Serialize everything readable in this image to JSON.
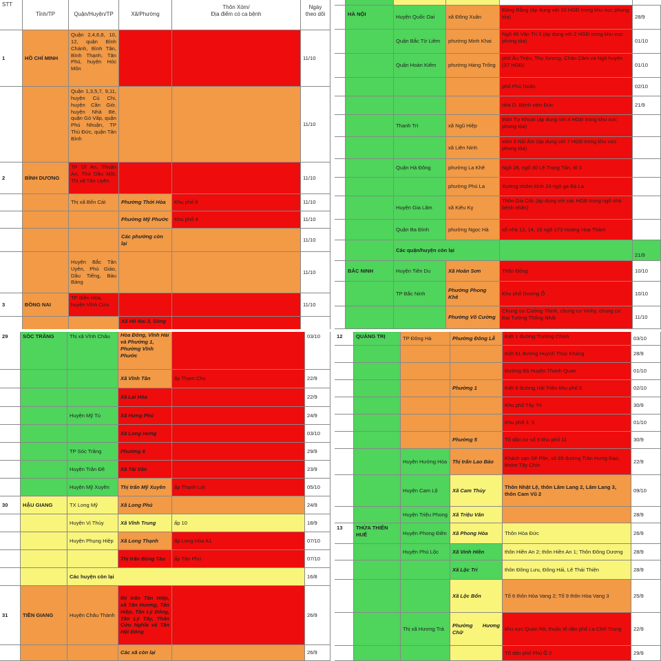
{
  "colors": {
    "green": "#4fd45c",
    "orange": "#f29a46",
    "red": "#ef0c0c",
    "yellow": "#f8f57a"
  },
  "q1": {
    "header": {
      "stt": "STT",
      "tinh": "Tỉnh/TP",
      "quan": "Quận/Huyện/TP",
      "xa": "Xã/Phường",
      "thon": "Thôn Xóm/\nĐịa điểm có ca bệnh",
      "ngay": "Ngày theo dõi"
    },
    "rows": [
      {
        "stt": "1",
        "tinh": "HỒ CHÍ MINH",
        "quan": "Quận 2,4,6,8, 10, 12, quận Bình Chánh, Bình Tân, Bình Thạnh, Tân Phú, huyện Hóc Môn",
        "xa": "",
        "thon": "",
        "ngay": "11/10"
      },
      {
        "stt": "",
        "tinh": "",
        "quan": "Quận 1,3,5,7, 9,11, huyện Củ Chi, huyện Cần Giờ, huyện Nhà Bè, quận Gò Vấp, quận Phú Nhuận, TP Thủ Đức, quận Tân Bình",
        "xa": "",
        "thon": "",
        "ngay": "11/10"
      },
      {
        "stt": "2",
        "tinh": "BÌNH DƯƠNG",
        "quan": "TP Dĩ An, Thuận An, Thủ Dầu Một, Thị xã Tân Uyên",
        "xa": "",
        "thon": "",
        "ngay": "11/10"
      },
      {
        "stt": "",
        "tinh": "",
        "quan": "Thị xã Bến Cát",
        "xa": "Phường Thới Hòa",
        "thon": "Khu phố 6",
        "ngay": "11/10"
      },
      {
        "stt": "",
        "tinh": "",
        "quan": "",
        "xa": "Phường Mỹ Phước",
        "thon": "Khu phố 4",
        "ngay": "11/10"
      },
      {
        "stt": "",
        "tinh": "",
        "quan": "",
        "xa": "Các phường còn lại",
        "thon": "",
        "ngay": "11/10"
      },
      {
        "stt": "",
        "tinh": "",
        "quan": "Huyện Bắc Tân Uyên, Phú Giáo, Dầu Tiếng, Bàu Bàng",
        "xa": "",
        "thon": "",
        "ngay": "11/10"
      },
      {
        "stt": "3",
        "tinh": "ĐỒNG NAI",
        "quan": "TP Biên Hòa, huyện Vĩnh Cửu",
        "xa": "",
        "thon": "",
        "ngay": "11/10"
      },
      {
        "stt": "",
        "tinh": "",
        "quan": "",
        "xa": "Xã Hố Nai 3, Sông",
        "thon": "",
        "ngay": ""
      }
    ]
  },
  "q2": {
    "rows": [
      {
        "tinh": "HÀ NỘI",
        "quan": "Huyện Quốc Oai",
        "xa": "xã Đông Xuân",
        "thon": "Đồng Rằng (áp dụng với 10 HGĐ trong khu vực phong tỏa)",
        "ngay": "28/9"
      },
      {
        "tinh": "",
        "quan": "Quận Bắc Từ Liêm",
        "xa": "phường Minh Khai",
        "thon": "Ngõ 46 Văn Trì 3 (áp dụng với 2 HGĐ trong khu vực phong tỏa)",
        "ngay": "01/10"
      },
      {
        "tinh": "",
        "quan": "Quận Hoàn Kiếm",
        "xa": "phường Hàng Trống",
        "thon": "phố Âu Triệu, Thọ Xương, Chân Cầm và Ngõ huyện (37 HGĐ)",
        "ngay": "01/10"
      },
      {
        "tinh": "",
        "quan": "",
        "xa": "",
        "thon": "phố Phủ Doãn",
        "ngay": "02/10"
      },
      {
        "tinh": "",
        "quan": "",
        "xa": "",
        "thon": "nhà D. Bệnh viện Đức",
        "ngay": "21/9"
      },
      {
        "tinh": "",
        "quan": "Thanh Trì",
        "xa": "xã Ngũ Hiệp",
        "thon": "thôn Tự Khoát (áp dụng với 4 HGĐ trong khu vực phong tỏa)",
        "ngay": ""
      },
      {
        "tinh": "",
        "quan": "",
        "xa": "xã Liên Ninh",
        "thon": "xóm 3 Nội Âm (áp dụng với 7 HGĐ trong khu vực phong tỏa)",
        "ngay": ""
      },
      {
        "tinh": "",
        "quan": "Quận Hà Đông",
        "xa": "phường La Khê",
        "thon": "Ngõ 28, ngõ 30 Lê Trọng Tấn, tổ 3",
        "ngay": ""
      },
      {
        "tinh": "",
        "quan": "",
        "xa": "phường Phú La",
        "thon": "Xưởng nhôm kính 24 ngõ ga Bà La",
        "ngay": ""
      },
      {
        "tinh": "",
        "quan": "Huyện Gia Lâm",
        "xa": "xã Kiêu Kỵ",
        "thon": "Thôn Gia Cốc (áp dụng với các HGĐ trong ngõ nhà bệnh nhân)",
        "ngay": ""
      },
      {
        "tinh": "",
        "quan": "Quận Ba Đình",
        "xa": "phường Ngọc Hà",
        "thon": "số nhà 12, 14, 16 ngõ 173 Hoàng Hoa Thám",
        "ngay": ""
      },
      {
        "tinh": "",
        "quan": "Các quận/huyện còn lại",
        "xa": "",
        "thon": "",
        "ngay": "21/9"
      },
      {
        "tinh": "BẮC NINH",
        "quan": "Huyện Tiên Du",
        "xa": "Xã Hoàn Sơn",
        "thon": "Thôn Đồng",
        "ngay": "10/10"
      },
      {
        "tinh": "",
        "quan": "TP Bắc Ninh",
        "xa": "Phường Phong Khê",
        "thon": "Khu phố Dương Ổ",
        "ngay": "10/10"
      },
      {
        "tinh": "",
        "quan": "",
        "xa": "Phường Võ Cường",
        "thon": "Chung cư Cường Thịnh, chung cư Vinhy, chung cư Đại Tướng Thống Nhất",
        "ngay": "11/10"
      }
    ]
  },
  "q3": {
    "rows": [
      {
        "stt": "29",
        "tinh": "SÓC TRĂNG",
        "quan": "Thị xã Vĩnh Châu",
        "xa": "Hòa Đông, Vĩnh Hải và Phường 1, Phường Vĩnh Phước",
        "thon": "",
        "ngay": "03/10"
      },
      {
        "stt": "",
        "tinh": "",
        "quan": "",
        "xa": "Xã Vĩnh Tân",
        "thon": "ấp Tham Chu",
        "ngay": "22/9"
      },
      {
        "stt": "",
        "tinh": "",
        "quan": "",
        "xa": "Xã Lai Hòa",
        "thon": "",
        "ngay": "22/9"
      },
      {
        "stt": "",
        "tinh": "",
        "quan": "Huyện Mỹ Tú",
        "xa": "Xã Hưng Phú",
        "thon": "",
        "ngay": "24/9"
      },
      {
        "stt": "",
        "tinh": "",
        "quan": "",
        "xa": "Xã Long Hưng",
        "thon": "",
        "ngay": "03/10"
      },
      {
        "stt": "",
        "tinh": "",
        "quan": "TP Sóc Trăng",
        "xa": "Phường 6",
        "thon": "",
        "ngay": "29/9"
      },
      {
        "stt": "",
        "tinh": "",
        "quan": "Huyện Trần Đề",
        "xa": "Xã Tài Văn",
        "thon": "",
        "ngay": "23/9"
      },
      {
        "stt": "",
        "tinh": "",
        "quan": "Huyện Mỹ Xuyên",
        "xa": "Thị trấn Mỹ Xuyên",
        "thon": "ấp Thạnh Lợi",
        "ngay": "05/10"
      },
      {
        "stt": "30",
        "tinh": "HẬU GIANG",
        "quan": "TX Long Mỹ",
        "xa": "Xã Long Phú",
        "thon": "",
        "ngay": "24/9"
      },
      {
        "stt": "",
        "tinh": "",
        "quan": "Huyện Vị Thủy",
        "xa": "Xã Vĩnh Trung",
        "thon": "ấp 10",
        "ngay": "18/9"
      },
      {
        "stt": "",
        "tinh": "",
        "quan": "Huyện Phụng Hiệp",
        "xa": "Xã Long Thạnh",
        "thon": "ấp Long Hòa A1",
        "ngay": "07/10"
      },
      {
        "stt": "",
        "tinh": "",
        "quan": "",
        "xa": "Thị trấn Búng Tàu",
        "thon": "ấp Tân Phú",
        "ngay": "07/10"
      },
      {
        "stt": "",
        "tinh": "",
        "quan": "Các huyện còn lại",
        "xa": "",
        "thon": "",
        "ngay": "16/8"
      },
      {
        "stt": "31",
        "tinh": "TIỀN GIANG",
        "quan": "Huyện Châu Thành",
        "xa": "thị trấn Tân Hiệp, xã Tân Hương, Tân Hiệp, Tân Lý Đông, Tân Lý Tây, Thân Cửu Nghĩa và Tân Hội Đông",
        "thon": "",
        "ngay": "26/9"
      },
      {
        "stt": "",
        "tinh": "",
        "quan": "",
        "xa": "Các xã còn lại",
        "thon": "",
        "ngay": "26/9"
      }
    ]
  },
  "q4": {
    "rows": [
      {
        "stt": "12",
        "tinh": "QUẢNG TRỊ",
        "quan": "TP Đông Hà",
        "xa": "Phường Đông Lễ",
        "thon": "Kiệt 1 đường Trường Chinh",
        "ngay": "03/10"
      },
      {
        "stt": "",
        "tinh": "",
        "quan": "",
        "xa": "",
        "thon": "Kiệt 61 đường Huỳnh Thúc Kháng",
        "ngay": "28/9"
      },
      {
        "stt": "",
        "tinh": "",
        "quan": "",
        "xa": "",
        "thon": "Đường Bà Huyện Thanh Quan",
        "ngay": "01/10"
      },
      {
        "stt": "",
        "tinh": "",
        "quan": "",
        "xa": "Phường 1",
        "thon": "Kiệt 8 đường Hải Triều khu phố 5",
        "ngay": "02/10"
      },
      {
        "stt": "",
        "tinh": "",
        "quan": "",
        "xa": "",
        "thon": "Khu phố Tây Trì",
        "ngay": "30/9"
      },
      {
        "stt": "",
        "tinh": "",
        "quan": "",
        "xa": "",
        "thon": "Khu phố 3, 5",
        "ngay": "01/10"
      },
      {
        "stt": "",
        "tinh": "",
        "quan": "",
        "xa": "Phường 5",
        "thon": "Tổ dân cư số 9 khu phố 11",
        "ngay": "30/9"
      },
      {
        "stt": "",
        "tinh": "",
        "quan": "Huyện Hướng Hóa",
        "xa": "Thị trấn Lao Bảo",
        "thon": "Khách sạn Sê Pôn, số 89 đường Trần Hưng Đạo, khóm Tây Chín",
        "ngay": "22/9"
      },
      {
        "stt": "",
        "tinh": "",
        "quan": "Huyện Cam Lộ",
        "xa": "Xã Cam Thủy",
        "thon": "Thôn Nhật Lệ, thôn Lâm Lang 2, Lâm Lang 3, thôn Cam Vũ 2",
        "ngay": "09/10"
      },
      {
        "stt": "",
        "tinh": "",
        "quan": "Huyện Triệu Phong",
        "xa": "Xã Triệu Vân",
        "thon": "",
        "ngay": "28/9"
      },
      {
        "stt": "13",
        "tinh": "THỪA THIÊN HUẾ",
        "quan": "Huyện Phong Điền",
        "xa": "Xã Phong Hòa",
        "thon": "Thôn Hòa Đức",
        "ngay": "26/9"
      },
      {
        "stt": "",
        "tinh": "",
        "quan": "Huyện Phú Lộc",
        "xa": "Xã Vinh Hiền",
        "thon": "thôn Hiền An 2; thôn Hiền An 1; Thôn Đông Dương",
        "ngay": "28/9"
      },
      {
        "stt": "",
        "tinh": "",
        "quan": "",
        "xa": "Xã Lộc Trì",
        "thon": "thôn Đông Lưu, Đông Hải, Lê Thái Thiện",
        "ngay": "28/9"
      },
      {
        "stt": "",
        "tinh": "",
        "quan": "",
        "xa": "Xã Lộc Bổn",
        "thon": "Tổ 6 thôn Hòa Vang 2; Tổ 9 thôn Hòa Vang 3",
        "ngay": "25/9"
      },
      {
        "stt": "",
        "tinh": "",
        "quan": "Thị xã Hương Trà",
        "xa": "Phường Hương Chữ",
        "thon": "khu vực Quán Rỏ, thuộc tổ dân phố La Chữ Trung",
        "ngay": "22/9"
      },
      {
        "stt": "",
        "tinh": "",
        "quan": "",
        "xa": "",
        "thon": "Tổ dân phố Phú Ổ 2",
        "ngay": "29/9"
      }
    ]
  }
}
